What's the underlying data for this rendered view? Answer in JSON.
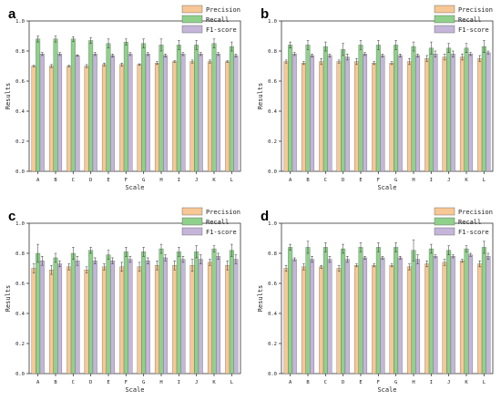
{
  "chart_data": [
    {
      "type": "bar",
      "panel": "a",
      "xlabel": "Scale",
      "ylabel": "Results",
      "ylim": [
        0,
        1.0
      ],
      "yticks": [
        "0.0",
        "0.2",
        "0.4",
        "0.6",
        "0.8",
        "1.0"
      ],
      "legend_position": "top-right",
      "categories": [
        "A",
        "B",
        "C",
        "D",
        "E",
        "F",
        "G",
        "H",
        "I",
        "J",
        "K",
        "L"
      ],
      "series": [
        {
          "name": "Precision",
          "color": "#f7c795",
          "values": [
            0.7,
            0.7,
            0.7,
            0.7,
            0.71,
            0.71,
            0.71,
            0.72,
            0.73,
            0.73,
            0.73,
            0.73
          ],
          "errors": [
            0.005,
            0.01,
            0.005,
            0.01,
            0.01,
            0.01,
            0.005,
            0.01,
            0.005,
            0.01,
            0.01,
            0.005
          ]
        },
        {
          "name": "Recall",
          "color": "#8fd18b",
          "values": [
            0.88,
            0.88,
            0.88,
            0.87,
            0.85,
            0.86,
            0.85,
            0.84,
            0.84,
            0.84,
            0.85,
            0.83
          ],
          "errors": [
            0.02,
            0.02,
            0.015,
            0.02,
            0.03,
            0.02,
            0.03,
            0.04,
            0.03,
            0.03,
            0.03,
            0.03
          ]
        },
        {
          "name": "F1-score",
          "color": "#c4b5d9",
          "values": [
            0.78,
            0.78,
            0.77,
            0.78,
            0.77,
            0.78,
            0.78,
            0.77,
            0.78,
            0.78,
            0.78,
            0.77
          ],
          "errors": [
            0.01,
            0.01,
            0.005,
            0.01,
            0.01,
            0.01,
            0.01,
            0.01,
            0.01,
            0.01,
            0.01,
            0.01
          ]
        }
      ]
    },
    {
      "type": "bar",
      "panel": "b",
      "xlabel": "Scale",
      "ylabel": "Results",
      "ylim": [
        0,
        1.0
      ],
      "yticks": [
        "0.0",
        "0.2",
        "0.4",
        "0.6",
        "0.8",
        "1.0"
      ],
      "legend_position": "top-right",
      "categories": [
        "A",
        "B",
        "C",
        "D",
        "E",
        "F",
        "G",
        "H",
        "I",
        "J",
        "K",
        "L"
      ],
      "series": [
        {
          "name": "Precision",
          "color": "#f7c795",
          "values": [
            0.73,
            0.72,
            0.73,
            0.73,
            0.73,
            0.72,
            0.72,
            0.73,
            0.75,
            0.76,
            0.76,
            0.75
          ],
          "errors": [
            0.01,
            0.01,
            0.02,
            0.01,
            0.02,
            0.01,
            0.01,
            0.02,
            0.02,
            0.02,
            0.02,
            0.02
          ]
        },
        {
          "name": "Recall",
          "color": "#8fd18b",
          "values": [
            0.84,
            0.84,
            0.83,
            0.81,
            0.84,
            0.84,
            0.84,
            0.83,
            0.82,
            0.82,
            0.82,
            0.83
          ],
          "errors": [
            0.02,
            0.03,
            0.03,
            0.04,
            0.03,
            0.03,
            0.03,
            0.03,
            0.04,
            0.03,
            0.03,
            0.04
          ]
        },
        {
          "name": "F1-score",
          "color": "#c4b5d9",
          "values": [
            0.78,
            0.77,
            0.77,
            0.76,
            0.78,
            0.77,
            0.77,
            0.77,
            0.78,
            0.78,
            0.78,
            0.79
          ],
          "errors": [
            0.01,
            0.01,
            0.01,
            0.02,
            0.01,
            0.01,
            0.01,
            0.01,
            0.02,
            0.02,
            0.01,
            0.01
          ]
        }
      ]
    },
    {
      "type": "bar",
      "panel": "c",
      "xlabel": "Scale",
      "ylabel": "Results",
      "ylim": [
        0,
        1.0
      ],
      "yticks": [
        "0.0",
        "0.2",
        "0.4",
        "0.6",
        "0.8",
        "1.0"
      ],
      "legend_position": "top-right",
      "categories": [
        "A",
        "B",
        "C",
        "D",
        "E",
        "F",
        "G",
        "H",
        "I",
        "J",
        "K",
        "L"
      ],
      "series": [
        {
          "name": "Precision",
          "color": "#f7c795",
          "values": [
            0.7,
            0.69,
            0.71,
            0.69,
            0.71,
            0.71,
            0.71,
            0.72,
            0.72,
            0.72,
            0.74,
            0.72
          ],
          "errors": [
            0.03,
            0.03,
            0.02,
            0.02,
            0.02,
            0.03,
            0.03,
            0.03,
            0.03,
            0.04,
            0.02,
            0.03
          ]
        },
        {
          "name": "Recall",
          "color": "#8fd18b",
          "values": [
            0.8,
            0.77,
            0.8,
            0.82,
            0.79,
            0.81,
            0.81,
            0.83,
            0.81,
            0.81,
            0.83,
            0.82
          ],
          "errors": [
            0.06,
            0.03,
            0.04,
            0.02,
            0.03,
            0.03,
            0.03,
            0.03,
            0.03,
            0.04,
            0.02,
            0.04
          ]
        },
        {
          "name": "F1-score",
          "color": "#c4b5d9",
          "values": [
            0.75,
            0.73,
            0.75,
            0.75,
            0.75,
            0.76,
            0.75,
            0.77,
            0.76,
            0.76,
            0.78,
            0.76
          ],
          "errors": [
            0.03,
            0.02,
            0.03,
            0.02,
            0.02,
            0.02,
            0.02,
            0.02,
            0.02,
            0.03,
            0.02,
            0.03
          ]
        }
      ]
    },
    {
      "type": "bar",
      "panel": "d",
      "xlabel": "Scale",
      "ylabel": "Results",
      "ylim": [
        0,
        1.0
      ],
      "yticks": [
        "0.0",
        "0.2",
        "0.4",
        "0.6",
        "0.8",
        "1.0"
      ],
      "legend_position": "top-right",
      "categories": [
        "A",
        "B",
        "C",
        "D",
        "E",
        "F",
        "G",
        "H",
        "I",
        "J",
        "K",
        "L"
      ],
      "series": [
        {
          "name": "Precision",
          "color": "#f7c795",
          "values": [
            0.7,
            0.71,
            0.71,
            0.7,
            0.72,
            0.72,
            0.72,
            0.71,
            0.73,
            0.74,
            0.75,
            0.73
          ],
          "errors": [
            0.02,
            0.02,
            0.01,
            0.02,
            0.01,
            0.01,
            0.01,
            0.02,
            0.02,
            0.02,
            0.01,
            0.02
          ]
        },
        {
          "name": "Recall",
          "color": "#8fd18b",
          "values": [
            0.84,
            0.84,
            0.84,
            0.83,
            0.84,
            0.84,
            0.84,
            0.82,
            0.83,
            0.82,
            0.83,
            0.84
          ],
          "errors": [
            0.02,
            0.04,
            0.03,
            0.03,
            0.03,
            0.03,
            0.03,
            0.07,
            0.03,
            0.03,
            0.02,
            0.04
          ]
        },
        {
          "name": "F1-score",
          "color": "#c4b5d9",
          "values": [
            0.76,
            0.76,
            0.76,
            0.76,
            0.77,
            0.77,
            0.77,
            0.76,
            0.78,
            0.78,
            0.79,
            0.78
          ],
          "errors": [
            0.01,
            0.02,
            0.02,
            0.02,
            0.01,
            0.01,
            0.01,
            0.03,
            0.01,
            0.01,
            0.01,
            0.02
          ]
        }
      ]
    }
  ]
}
